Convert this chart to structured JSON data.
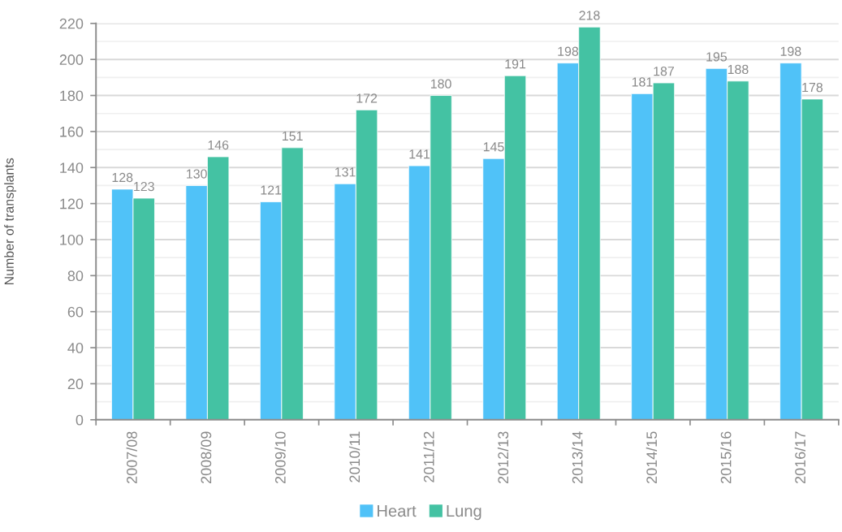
{
  "chart_data": {
    "type": "bar",
    "categories": [
      "2007/08",
      "2008/09",
      "2009/10",
      "2010/11",
      "2011/12",
      "2012/13",
      "2013/14",
      "2014/15",
      "2015/16",
      "2016/17"
    ],
    "series": [
      {
        "name": "Heart",
        "color": "#50c2f8",
        "values": [
          128,
          130,
          121,
          131,
          141,
          145,
          198,
          181,
          195,
          198
        ]
      },
      {
        "name": "Lung",
        "color": "#44c2a3",
        "values": [
          123,
          146,
          151,
          172,
          180,
          191,
          218,
          187,
          188,
          178
        ]
      }
    ],
    "ylabel": "Number of transplants",
    "ylim": [
      0,
      220
    ],
    "yticks": [
      0,
      20,
      40,
      60,
      80,
      100,
      120,
      140,
      160,
      180,
      200,
      220
    ],
    "grid": "y",
    "legend": "bottom",
    "data_labels": true
  }
}
